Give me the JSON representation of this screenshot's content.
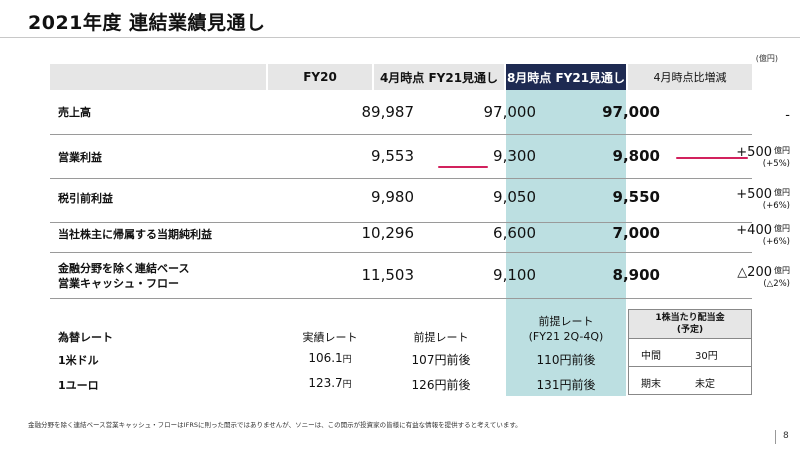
{
  "title": "2021年度 連結業績見通し",
  "unit": "(億円)",
  "headers": [
    "FY20",
    "4月時点 FY21見通し",
    "8月時点 FY21見通し",
    "4月時点比増減"
  ],
  "rows": [
    {
      "label": "売上高",
      "fy20": "89,987",
      "apr": "97,000",
      "aug": "97,000",
      "change": "-",
      "change_unit": "",
      "change_pct": ""
    },
    {
      "label": "営業利益",
      "fy20": "9,553",
      "apr": "9,300",
      "aug": "9,800",
      "change": "+500",
      "change_unit": "億円",
      "change_pct": "(+5%)"
    },
    {
      "label": "税引前利益",
      "fy20": "9,980",
      "apr": "9,050",
      "aug": "9,550",
      "change": "+500",
      "change_unit": "億円",
      "change_pct": "(+6%)"
    },
    {
      "label": "当社株主に帰属する当期純利益",
      "fy20": "10,296",
      "apr": "6,600",
      "aug": "7,000",
      "change": "+400",
      "change_unit": "億円",
      "change_pct": "(+6%)"
    },
    {
      "label_line1": "金融分野を除く連結ベース",
      "label_line2": "営業キャッシュ・フロー",
      "fy20": "11,503",
      "apr": "9,100",
      "aug": "8,900",
      "change": "△200",
      "change_unit": "億円",
      "change_pct": "(△2%)"
    }
  ],
  "fx": {
    "title": "為替レート",
    "col1": "実績レート",
    "col2": "前提レート",
    "col3_line1": "前提レート",
    "col3_line2": "(FY21 2Q-4Q)",
    "rows": [
      {
        "label": "1米ドル",
        "actual": "106.1",
        "actual_unit": "円",
        "assumed": "107円前後",
        "assumed_q": "110円前後"
      },
      {
        "label": "1ユーロ",
        "actual": "123.7",
        "actual_unit": "円",
        "assumed": "126円前後",
        "assumed_q": "131円前後"
      }
    ]
  },
  "dividend": {
    "title_line1": "1株当たり配当金",
    "title_line2": "(予定)",
    "rows": [
      {
        "label": "中間",
        "value": "30円"
      },
      {
        "label": "期末",
        "value": "未定"
      }
    ]
  },
  "footnote": "金融分野を除く連結ベース営業キャッシュ・フローはIFRSに則った開示ではありませんが、ソニーは、この開示が投資家の皆様に有益な情報を提供すると考えています。",
  "page_number": "8",
  "colors": {
    "header_bg": "#e6e6e6",
    "highlight_header": "#1e2a52",
    "highlight_col": "#bcdfe1",
    "accent_red": "#d2215d"
  }
}
